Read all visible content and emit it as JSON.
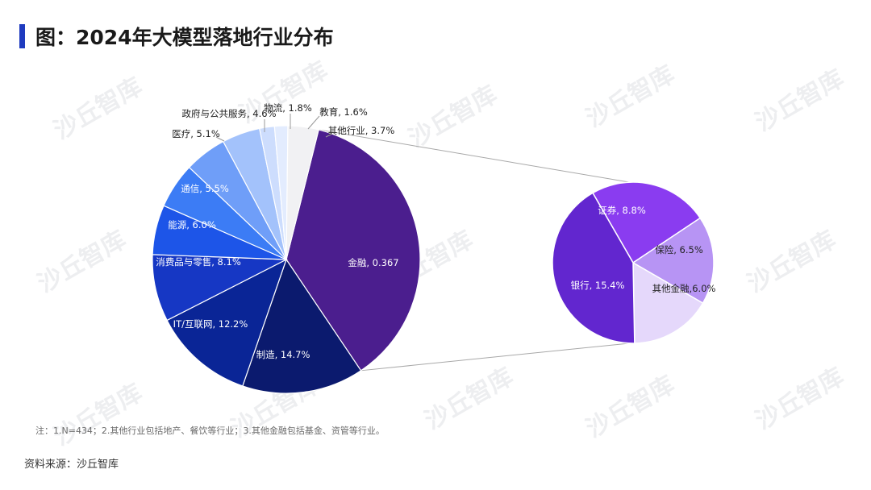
{
  "title": "图：2024年大模型落地行业分布",
  "note": "注：1.N=434；2.其他行业包括地产、餐饮等行业；3.其他金融包括基金、资管等行业。",
  "source": "资料来源：沙丘智库",
  "watermark": "沙丘智库",
  "colors": {
    "accent": "#1f3bbf"
  },
  "chart_data": [
    {
      "type": "pie",
      "slices": [
        {
          "name": "金融",
          "value": 36.7,
          "label": "金融, 0.367",
          "color": "#4b1e8e"
        },
        {
          "name": "制造",
          "value": 14.7,
          "label": "制造, 14.7%",
          "color": "#0b1a6e"
        },
        {
          "name": "IT/互联网",
          "value": 12.2,
          "label": "IT/互联网, 12.2%",
          "color": "#0a2596"
        },
        {
          "name": "消费品与零售",
          "value": 8.1,
          "label": "消费品与零售, 8.1%",
          "color": "#1637c4"
        },
        {
          "name": "能源",
          "value": 6.0,
          "label": "能源, 6.0%",
          "color": "#1d55e8"
        },
        {
          "name": "通信",
          "value": 5.5,
          "label": "通信, 5.5%",
          "color": "#3c7cf5"
        },
        {
          "name": "医疗",
          "value": 5.1,
          "label": "医疗, 5.1%",
          "color": "#6f9ef8"
        },
        {
          "name": "政府与公共服务",
          "value": 4.6,
          "label": "政府与公共服务, 4.6%",
          "color": "#a3c2fb"
        },
        {
          "name": "物流",
          "value": 1.8,
          "label": "物流, 1.8%",
          "color": "#cdddfd"
        },
        {
          "name": "教育",
          "value": 1.6,
          "label": "教育, 1.6%",
          "color": "#e3ecfe"
        },
        {
          "name": "其他行业",
          "value": 3.7,
          "label": "其他行业, 3.7%",
          "color": "#f1f1f3"
        }
      ]
    },
    {
      "type": "pie",
      "slices": [
        {
          "name": "证券",
          "value": 8.8,
          "label": "证券, 8.8%",
          "color": "#8a3cf0"
        },
        {
          "name": "保险",
          "value": 6.5,
          "label": "保险, 6.5%",
          "color": "#b794f4"
        },
        {
          "name": "其他金融",
          "value": 6.0,
          "label": "其他金融,6.0%",
          "color": "#e5d8fb"
        },
        {
          "name": "银行",
          "value": 15.4,
          "label": "银行, 15.4%",
          "color": "#6226cf"
        }
      ]
    }
  ]
}
